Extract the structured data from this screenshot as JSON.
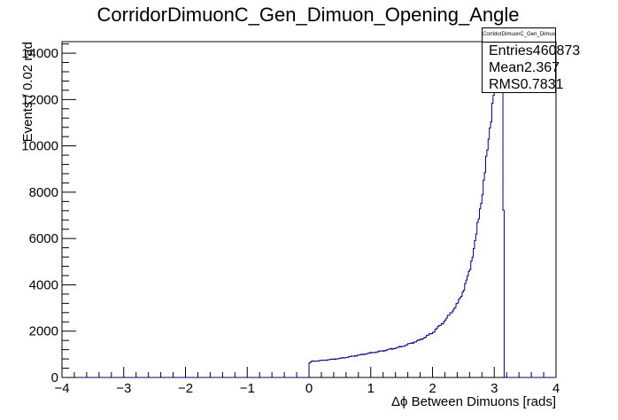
{
  "chart_data": {
    "type": "histogram",
    "title": "CorridorDimuonC_Gen_Dimuon_Opening_Angle",
    "xlabel": "Δϕ Between Dimuons [rads]",
    "ylabel": "Events / 0.02 rad",
    "xlim": [
      -4,
      4
    ],
    "ylim": [
      0,
      14500
    ],
    "x_ticks": [
      -4,
      -3,
      -2,
      -1,
      0,
      1,
      2,
      3,
      4
    ],
    "x_tick_labels": [
      "−4",
      "−3",
      "−2",
      "−1",
      "0",
      "1",
      "2",
      "3",
      "4"
    ],
    "y_ticks": [
      0,
      2000,
      4000,
      6000,
      8000,
      10000,
      12000,
      14000
    ],
    "y_tick_labels": [
      "0",
      "2000",
      "4000",
      "6000",
      "8000",
      "10000",
      "12000",
      "14000"
    ],
    "bin_width": 0.02,
    "line_color": "#00007f",
    "grid": false,
    "curve_points": [
      {
        "x": 0.0,
        "y": 600
      },
      {
        "x": 0.05,
        "y": 700
      },
      {
        "x": 0.2,
        "y": 730
      },
      {
        "x": 0.5,
        "y": 820
      },
      {
        "x": 0.8,
        "y": 960
      },
      {
        "x": 1.0,
        "y": 1060
      },
      {
        "x": 1.2,
        "y": 1150
      },
      {
        "x": 1.5,
        "y": 1330
      },
      {
        "x": 1.8,
        "y": 1620
      },
      {
        "x": 2.0,
        "y": 1930
      },
      {
        "x": 2.2,
        "y": 2450
      },
      {
        "x": 2.4,
        "y": 3150
      },
      {
        "x": 2.5,
        "y": 3750
      },
      {
        "x": 2.6,
        "y": 4600
      },
      {
        "x": 2.7,
        "y": 6000
      },
      {
        "x": 2.8,
        "y": 7800
      },
      {
        "x": 2.9,
        "y": 10000
      },
      {
        "x": 3.0,
        "y": 12600
      },
      {
        "x": 3.08,
        "y": 14500
      },
      {
        "x": 3.14,
        "y": 14500
      },
      {
        "x": 3.16,
        "y": 0
      }
    ],
    "stats": {
      "name": "CorridorDimuonC_Gen_Dimuon_Opening_Angle",
      "rows": [
        {
          "label": "Entries",
          "value": "460873"
        },
        {
          "label": "Mean",
          "value": "2.367"
        },
        {
          "label": "RMS",
          "value": "0.7831"
        }
      ]
    }
  }
}
